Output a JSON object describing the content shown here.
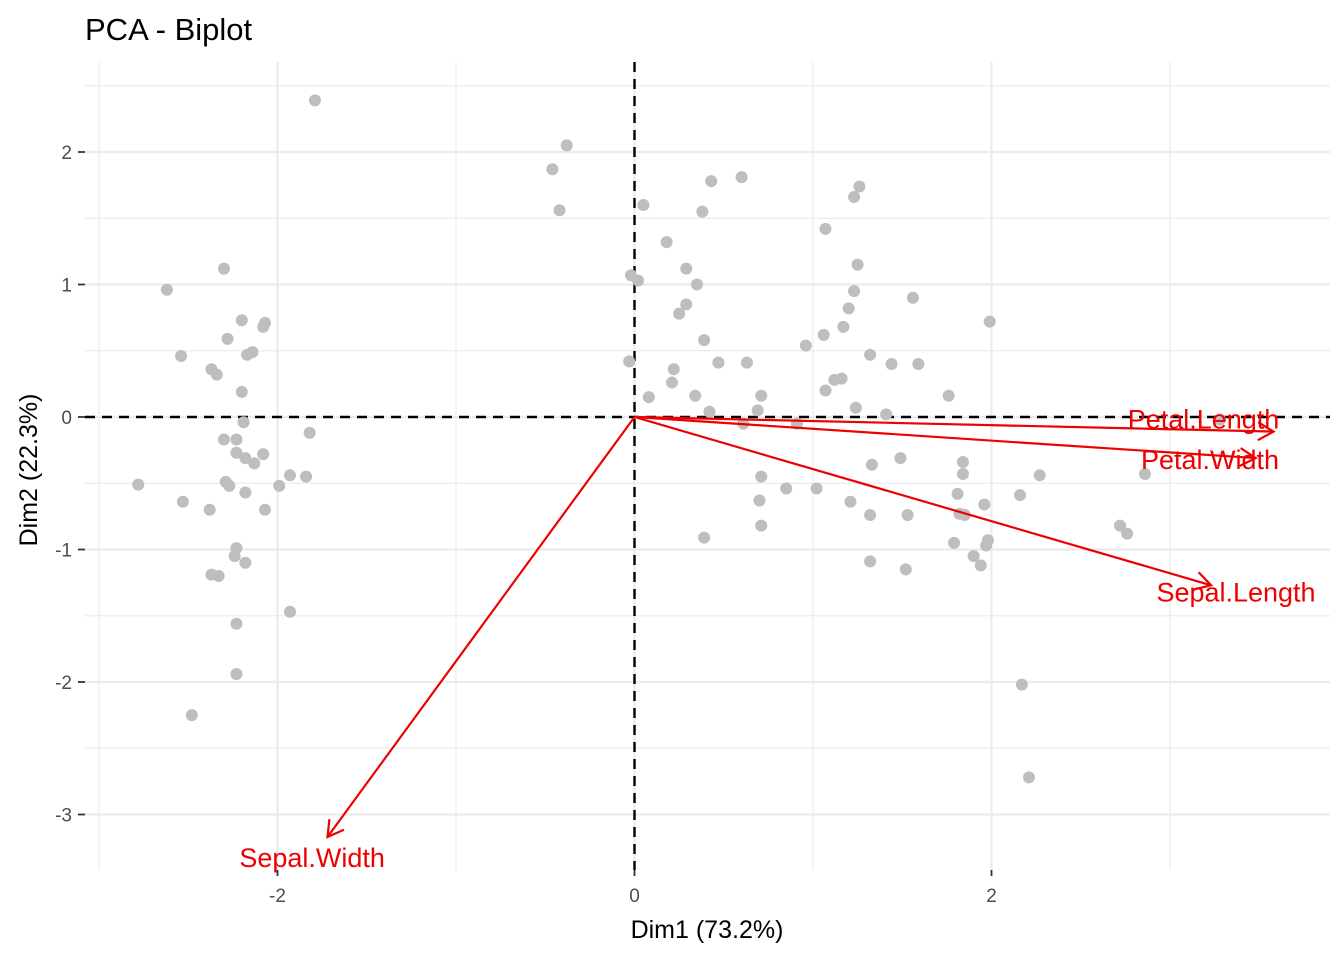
{
  "chart_data": {
    "type": "scatter",
    "title": "PCA - Biplot",
    "xlabel": "Dim1 (73.2%)",
    "ylabel": "Dim2 (22.3%)",
    "xlim": [
      -3.0,
      3.9
    ],
    "ylim": [
      -3.4,
      2.7
    ],
    "x_ticks": [
      {
        "value": -2,
        "label": "-2"
      },
      {
        "value": 0,
        "label": "0"
      },
      {
        "value": 2,
        "label": "2"
      }
    ],
    "y_ticks": [
      {
        "value": 2,
        "label": "2"
      },
      {
        "value": 1,
        "label": "1"
      },
      {
        "value": 0,
        "label": "0"
      },
      {
        "value": -1,
        "label": "-1"
      },
      {
        "value": -2,
        "label": "-2"
      },
      {
        "value": -3,
        "label": "-3"
      }
    ],
    "grid": true,
    "reference_lines": {
      "x": 0,
      "y": 0,
      "style": "dashed"
    },
    "colors": {
      "points": "#bebebe",
      "arrows": "#ee0000",
      "grid": "#ebebeb",
      "reference": "#000000"
    },
    "points": [
      [
        -1.79,
        2.39
      ],
      [
        -2.3,
        1.12
      ],
      [
        -2.62,
        0.96
      ],
      [
        -2.54,
        0.46
      ],
      [
        -2.28,
        0.59
      ],
      [
        -2.2,
        0.73
      ],
      [
        -2.08,
        0.68
      ],
      [
        -2.07,
        0.71
      ],
      [
        -2.14,
        0.49
      ],
      [
        -2.17,
        0.47
      ],
      [
        -2.37,
        0.36
      ],
      [
        -2.34,
        0.32
      ],
      [
        -2.2,
        0.19
      ],
      [
        -2.19,
        -0.04
      ],
      [
        -2.3,
        -0.17
      ],
      [
        -2.23,
        -0.17
      ],
      [
        -1.82,
        -0.12
      ],
      [
        -2.23,
        -0.27
      ],
      [
        -2.18,
        -0.31
      ],
      [
        -2.13,
        -0.35
      ],
      [
        -2.08,
        -0.28
      ],
      [
        -2.78,
        -0.51
      ],
      [
        -2.29,
        -0.49
      ],
      [
        -2.27,
        -0.52
      ],
      [
        -2.18,
        -0.57
      ],
      [
        -1.99,
        -0.52
      ],
      [
        -1.93,
        -0.44
      ],
      [
        -1.84,
        -0.45
      ],
      [
        -2.53,
        -0.64
      ],
      [
        -2.38,
        -0.7
      ],
      [
        -2.07,
        -0.7
      ],
      [
        -2.23,
        -0.99
      ],
      [
        -2.24,
        -1.05
      ],
      [
        -2.18,
        -1.1
      ],
      [
        -2.37,
        -1.19
      ],
      [
        -2.33,
        -1.2
      ],
      [
        -1.93,
        -1.47
      ],
      [
        -2.23,
        -1.56
      ],
      [
        -2.23,
        -1.94
      ],
      [
        -2.48,
        -2.25
      ],
      [
        -0.38,
        2.05
      ],
      [
        -0.46,
        1.87
      ],
      [
        -0.42,
        1.56
      ],
      [
        0.05,
        1.6
      ],
      [
        0.38,
        1.55
      ],
      [
        0.43,
        1.78
      ],
      [
        0.6,
        1.81
      ],
      [
        1.26,
        1.74
      ],
      [
        1.23,
        1.66
      ],
      [
        1.07,
        1.42
      ],
      [
        0.18,
        1.32
      ],
      [
        -0.02,
        1.07
      ],
      [
        0.02,
        1.03
      ],
      [
        0.29,
        1.12
      ],
      [
        0.35,
        1.0
      ],
      [
        0.29,
        0.85
      ],
      [
        0.25,
        0.78
      ],
      [
        1.25,
        1.15
      ],
      [
        1.23,
        0.95
      ],
      [
        1.2,
        0.82
      ],
      [
        1.56,
        0.9
      ],
      [
        1.99,
        0.72
      ],
      [
        1.17,
        0.68
      ],
      [
        1.06,
        0.62
      ],
      [
        0.96,
        0.54
      ],
      [
        0.39,
        0.58
      ],
      [
        0.47,
        0.41
      ],
      [
        -0.03,
        0.42
      ],
      [
        0.22,
        0.36
      ],
      [
        0.63,
        0.41
      ],
      [
        1.32,
        0.47
      ],
      [
        1.44,
        0.4
      ],
      [
        1.59,
        0.4
      ],
      [
        1.12,
        0.28
      ],
      [
        1.16,
        0.29
      ],
      [
        0.21,
        0.26
      ],
      [
        0.34,
        0.16
      ],
      [
        0.08,
        0.15
      ],
      [
        0.71,
        0.16
      ],
      [
        1.07,
        0.2
      ],
      [
        0.42,
        0.04
      ],
      [
        0.69,
        0.05
      ],
      [
        1.24,
        0.07
      ],
      [
        1.41,
        0.02
      ],
      [
        1.76,
        0.16
      ],
      [
        0.61,
        -0.05
      ],
      [
        0.91,
        -0.05
      ],
      [
        3.28,
        -0.02
      ],
      [
        1.84,
        -0.34
      ],
      [
        1.84,
        -0.43
      ],
      [
        1.49,
        -0.31
      ],
      [
        1.33,
        -0.36
      ],
      [
        2.27,
        -0.44
      ],
      [
        2.86,
        -0.43
      ],
      [
        0.71,
        -0.45
      ],
      [
        0.85,
        -0.54
      ],
      [
        1.02,
        -0.54
      ],
      [
        0.7,
        -0.63
      ],
      [
        1.81,
        -0.58
      ],
      [
        1.82,
        -0.73
      ],
      [
        1.85,
        -0.74
      ],
      [
        1.96,
        -0.66
      ],
      [
        2.16,
        -0.59
      ],
      [
        1.21,
        -0.64
      ],
      [
        1.32,
        -0.74
      ],
      [
        1.53,
        -0.74
      ],
      [
        0.71,
        -0.82
      ],
      [
        0.39,
        -0.91
      ],
      [
        1.79,
        -0.95
      ],
      [
        1.98,
        -0.93
      ],
      [
        1.97,
        -0.97
      ],
      [
        2.72,
        -0.82
      ],
      [
        2.76,
        -0.88
      ],
      [
        1.9,
        -1.05
      ],
      [
        1.94,
        -1.12
      ],
      [
        1.32,
        -1.09
      ],
      [
        1.52,
        -1.15
      ],
      [
        2.17,
        -2.02
      ],
      [
        2.21,
        -2.72
      ]
    ],
    "variables": [
      {
        "name": "Petal.Length",
        "x": 3.58,
        "y": -0.11
      },
      {
        "name": "Petal.Width",
        "x": 3.48,
        "y": -0.31
      },
      {
        "name": "Sepal.Length",
        "x": 3.23,
        "y": -1.27
      },
      {
        "name": "Sepal.Width",
        "x": -1.72,
        "y": -3.17
      }
    ]
  }
}
